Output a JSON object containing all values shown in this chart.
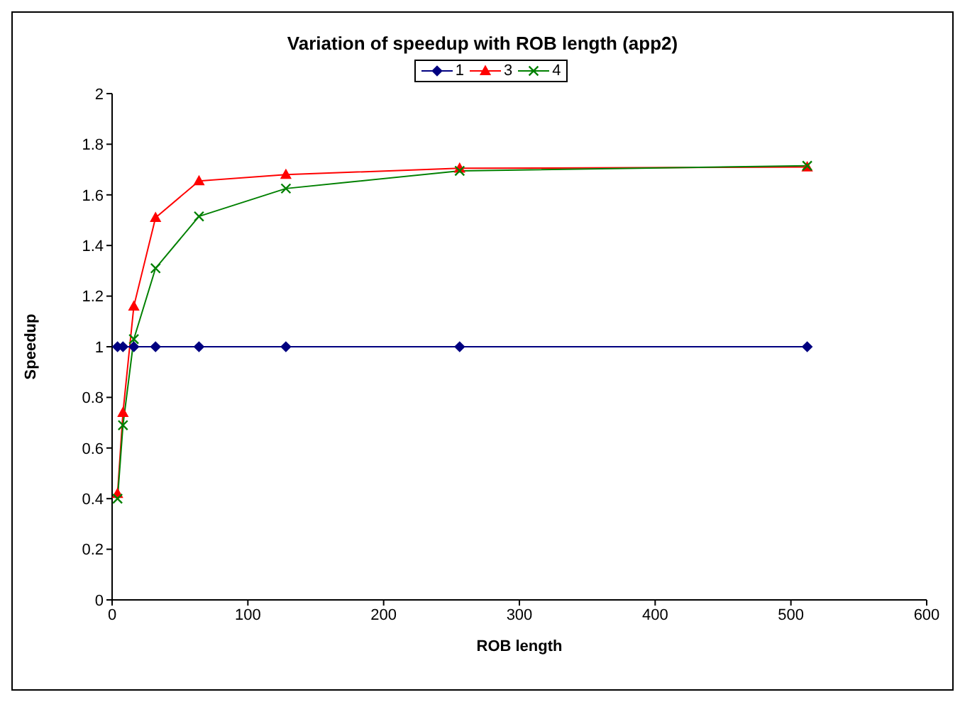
{
  "chart_data": {
    "type": "line",
    "title": "Variation of speedup with ROB length (app2)",
    "xlabel": "ROB length",
    "ylabel": "Speedup",
    "x": [
      4,
      8,
      16,
      32,
      64,
      128,
      256,
      512
    ],
    "series": [
      {
        "name": "1",
        "color": "#000080",
        "marker": "diamond",
        "values": [
          1,
          1,
          1,
          1,
          1,
          1,
          1,
          1
        ]
      },
      {
        "name": "3",
        "color": "#ff0000",
        "marker": "triangle",
        "values": [
          0.42,
          0.74,
          1.16,
          1.51,
          1.655,
          1.68,
          1.705,
          1.71
        ]
      },
      {
        "name": "4",
        "color": "#008000",
        "marker": "cross",
        "values": [
          0.4,
          0.69,
          1.03,
          1.31,
          1.515,
          1.625,
          1.695,
          1.715
        ]
      }
    ],
    "xlim": [
      0,
      600
    ],
    "xticks": [
      0,
      100,
      200,
      300,
      400,
      500,
      600
    ],
    "ylim": [
      0,
      2
    ],
    "yticks": [
      0,
      0.2,
      0.4,
      0.6,
      0.8,
      1,
      1.2,
      1.4,
      1.6,
      1.8,
      2
    ],
    "grid": false,
    "legend": "top"
  }
}
